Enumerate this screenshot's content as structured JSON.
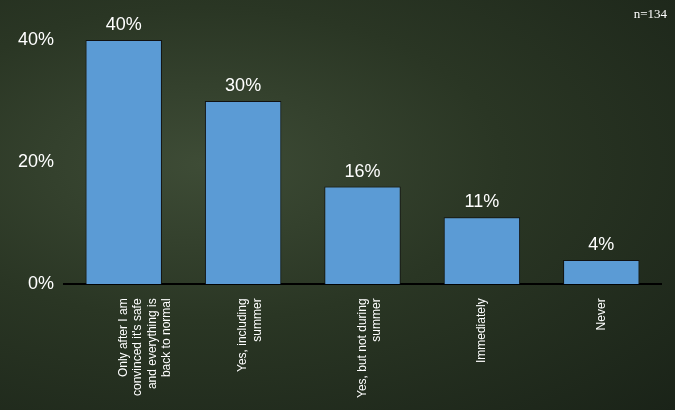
{
  "chart_data": {
    "type": "bar",
    "annotation": "n=134",
    "categories": [
      "Only after I am convinced it's safe and everything is back to normal",
      "Yes, including summer",
      "Yes, but not during summer",
      "Immediately",
      "Never"
    ],
    "values": [
      40,
      30,
      16,
      11,
      4
    ],
    "value_labels": [
      "40%",
      "30%",
      "16%",
      "11%",
      "4%"
    ],
    "color": "#5b9bd5",
    "ylim": [
      0,
      40
    ],
    "yticks": [
      {
        "value": 0,
        "label": "0%"
      },
      {
        "value": 20,
        "label": "20%"
      },
      {
        "value": 40,
        "label": "40%"
      }
    ],
    "grid": false,
    "data_labels": true
  }
}
